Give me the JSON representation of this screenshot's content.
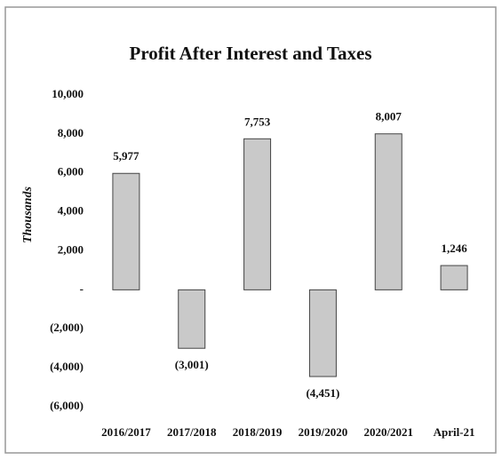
{
  "chart_data": {
    "type": "bar",
    "title": "Profit After Interest and Taxes",
    "y_label": "Thousands",
    "categories": [
      "2016/2017",
      "2017/2018",
      "2018/2019",
      "2019/2020",
      "2020/2021",
      "April-21"
    ],
    "values": [
      5977,
      -3001,
      7753,
      -4451,
      8007,
      1246
    ],
    "value_labels": [
      "5,977",
      "(3,001)",
      "7,753",
      "(4,451)",
      "8,007",
      "1,246"
    ],
    "color": "#c9c9c9",
    "ylim": [
      -6000,
      10000
    ],
    "yticks": [
      {
        "value": -6000,
        "label": "(6,000)"
      },
      {
        "value": -4000,
        "label": "(4,000)"
      },
      {
        "value": -2000,
        "label": "(2,000)"
      },
      {
        "value": 0,
        "label": "-"
      },
      {
        "value": 2000,
        "label": "2,000"
      },
      {
        "value": 4000,
        "label": "4,000"
      },
      {
        "value": 6000,
        "label": "6,000"
      },
      {
        "value": 8000,
        "label": "8,000"
      },
      {
        "value": 10000,
        "label": "10,000"
      }
    ],
    "grid": false
  }
}
